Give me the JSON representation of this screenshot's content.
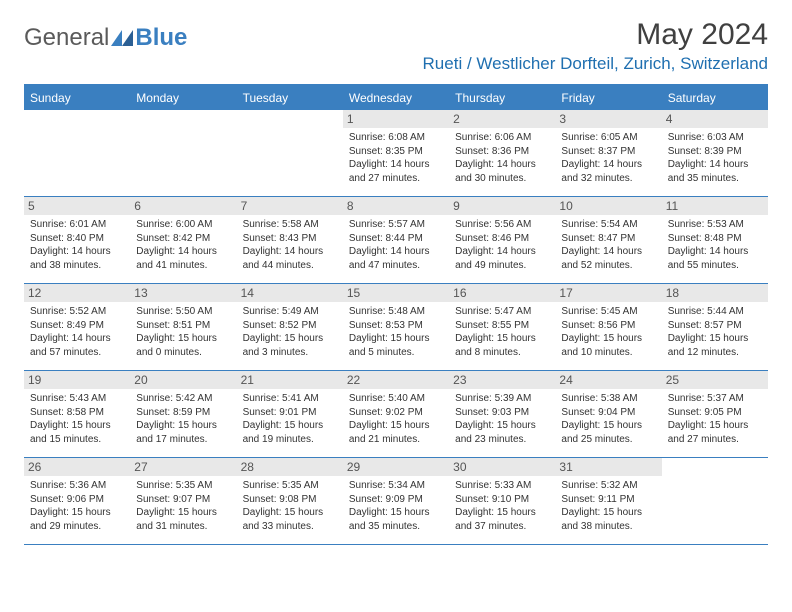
{
  "logo": {
    "text1": "General",
    "text2": "Blue"
  },
  "title": "May 2024",
  "location": "Rueti / Westlicher Dorfteil, Zurich, Switzerland",
  "colors": {
    "header_bg": "#3a7fc0",
    "header_text": "#ffffff",
    "daynum_bg": "#e8e8e8",
    "border": "#3a7fc0",
    "location": "#1f6fb0",
    "body_text": "#333333"
  },
  "day_headers": [
    "Sunday",
    "Monday",
    "Tuesday",
    "Wednesday",
    "Thursday",
    "Friday",
    "Saturday"
  ],
  "weeks": [
    [
      {
        "day": "",
        "sunrise": "",
        "sunset": "",
        "daylight": ""
      },
      {
        "day": "",
        "sunrise": "",
        "sunset": "",
        "daylight": ""
      },
      {
        "day": "",
        "sunrise": "",
        "sunset": "",
        "daylight": ""
      },
      {
        "day": "1",
        "sunrise": "Sunrise: 6:08 AM",
        "sunset": "Sunset: 8:35 PM",
        "daylight": "Daylight: 14 hours and 27 minutes."
      },
      {
        "day": "2",
        "sunrise": "Sunrise: 6:06 AM",
        "sunset": "Sunset: 8:36 PM",
        "daylight": "Daylight: 14 hours and 30 minutes."
      },
      {
        "day": "3",
        "sunrise": "Sunrise: 6:05 AM",
        "sunset": "Sunset: 8:37 PM",
        "daylight": "Daylight: 14 hours and 32 minutes."
      },
      {
        "day": "4",
        "sunrise": "Sunrise: 6:03 AM",
        "sunset": "Sunset: 8:39 PM",
        "daylight": "Daylight: 14 hours and 35 minutes."
      }
    ],
    [
      {
        "day": "5",
        "sunrise": "Sunrise: 6:01 AM",
        "sunset": "Sunset: 8:40 PM",
        "daylight": "Daylight: 14 hours and 38 minutes."
      },
      {
        "day": "6",
        "sunrise": "Sunrise: 6:00 AM",
        "sunset": "Sunset: 8:42 PM",
        "daylight": "Daylight: 14 hours and 41 minutes."
      },
      {
        "day": "7",
        "sunrise": "Sunrise: 5:58 AM",
        "sunset": "Sunset: 8:43 PM",
        "daylight": "Daylight: 14 hours and 44 minutes."
      },
      {
        "day": "8",
        "sunrise": "Sunrise: 5:57 AM",
        "sunset": "Sunset: 8:44 PM",
        "daylight": "Daylight: 14 hours and 47 minutes."
      },
      {
        "day": "9",
        "sunrise": "Sunrise: 5:56 AM",
        "sunset": "Sunset: 8:46 PM",
        "daylight": "Daylight: 14 hours and 49 minutes."
      },
      {
        "day": "10",
        "sunrise": "Sunrise: 5:54 AM",
        "sunset": "Sunset: 8:47 PM",
        "daylight": "Daylight: 14 hours and 52 minutes."
      },
      {
        "day": "11",
        "sunrise": "Sunrise: 5:53 AM",
        "sunset": "Sunset: 8:48 PM",
        "daylight": "Daylight: 14 hours and 55 minutes."
      }
    ],
    [
      {
        "day": "12",
        "sunrise": "Sunrise: 5:52 AM",
        "sunset": "Sunset: 8:49 PM",
        "daylight": "Daylight: 14 hours and 57 minutes."
      },
      {
        "day": "13",
        "sunrise": "Sunrise: 5:50 AM",
        "sunset": "Sunset: 8:51 PM",
        "daylight": "Daylight: 15 hours and 0 minutes."
      },
      {
        "day": "14",
        "sunrise": "Sunrise: 5:49 AM",
        "sunset": "Sunset: 8:52 PM",
        "daylight": "Daylight: 15 hours and 3 minutes."
      },
      {
        "day": "15",
        "sunrise": "Sunrise: 5:48 AM",
        "sunset": "Sunset: 8:53 PM",
        "daylight": "Daylight: 15 hours and 5 minutes."
      },
      {
        "day": "16",
        "sunrise": "Sunrise: 5:47 AM",
        "sunset": "Sunset: 8:55 PM",
        "daylight": "Daylight: 15 hours and 8 minutes."
      },
      {
        "day": "17",
        "sunrise": "Sunrise: 5:45 AM",
        "sunset": "Sunset: 8:56 PM",
        "daylight": "Daylight: 15 hours and 10 minutes."
      },
      {
        "day": "18",
        "sunrise": "Sunrise: 5:44 AM",
        "sunset": "Sunset: 8:57 PM",
        "daylight": "Daylight: 15 hours and 12 minutes."
      }
    ],
    [
      {
        "day": "19",
        "sunrise": "Sunrise: 5:43 AM",
        "sunset": "Sunset: 8:58 PM",
        "daylight": "Daylight: 15 hours and 15 minutes."
      },
      {
        "day": "20",
        "sunrise": "Sunrise: 5:42 AM",
        "sunset": "Sunset: 8:59 PM",
        "daylight": "Daylight: 15 hours and 17 minutes."
      },
      {
        "day": "21",
        "sunrise": "Sunrise: 5:41 AM",
        "sunset": "Sunset: 9:01 PM",
        "daylight": "Daylight: 15 hours and 19 minutes."
      },
      {
        "day": "22",
        "sunrise": "Sunrise: 5:40 AM",
        "sunset": "Sunset: 9:02 PM",
        "daylight": "Daylight: 15 hours and 21 minutes."
      },
      {
        "day": "23",
        "sunrise": "Sunrise: 5:39 AM",
        "sunset": "Sunset: 9:03 PM",
        "daylight": "Daylight: 15 hours and 23 minutes."
      },
      {
        "day": "24",
        "sunrise": "Sunrise: 5:38 AM",
        "sunset": "Sunset: 9:04 PM",
        "daylight": "Daylight: 15 hours and 25 minutes."
      },
      {
        "day": "25",
        "sunrise": "Sunrise: 5:37 AM",
        "sunset": "Sunset: 9:05 PM",
        "daylight": "Daylight: 15 hours and 27 minutes."
      }
    ],
    [
      {
        "day": "26",
        "sunrise": "Sunrise: 5:36 AM",
        "sunset": "Sunset: 9:06 PM",
        "daylight": "Daylight: 15 hours and 29 minutes."
      },
      {
        "day": "27",
        "sunrise": "Sunrise: 5:35 AM",
        "sunset": "Sunset: 9:07 PM",
        "daylight": "Daylight: 15 hours and 31 minutes."
      },
      {
        "day": "28",
        "sunrise": "Sunrise: 5:35 AM",
        "sunset": "Sunset: 9:08 PM",
        "daylight": "Daylight: 15 hours and 33 minutes."
      },
      {
        "day": "29",
        "sunrise": "Sunrise: 5:34 AM",
        "sunset": "Sunset: 9:09 PM",
        "daylight": "Daylight: 15 hours and 35 minutes."
      },
      {
        "day": "30",
        "sunrise": "Sunrise: 5:33 AM",
        "sunset": "Sunset: 9:10 PM",
        "daylight": "Daylight: 15 hours and 37 minutes."
      },
      {
        "day": "31",
        "sunrise": "Sunrise: 5:32 AM",
        "sunset": "Sunset: 9:11 PM",
        "daylight": "Daylight: 15 hours and 38 minutes."
      },
      {
        "day": "",
        "sunrise": "",
        "sunset": "",
        "daylight": ""
      }
    ]
  ]
}
